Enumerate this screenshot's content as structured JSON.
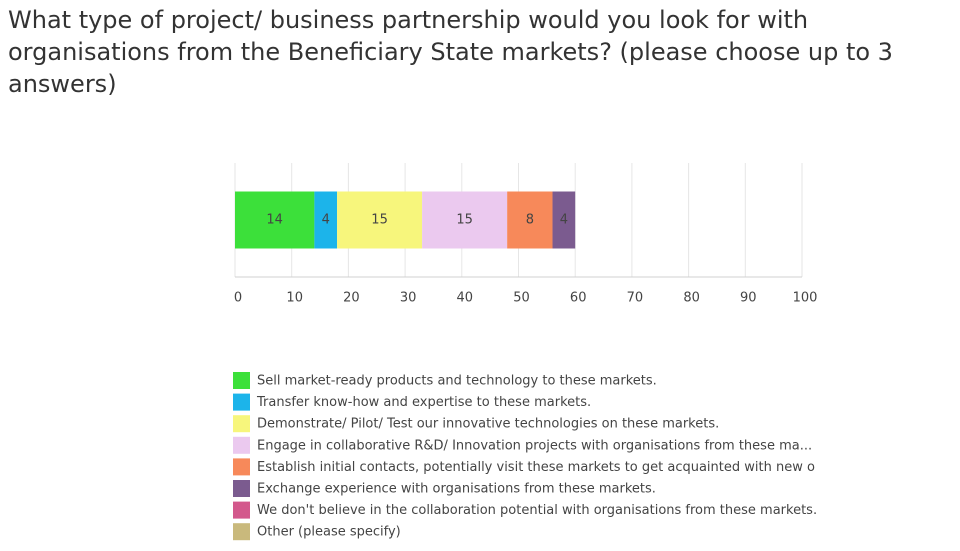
{
  "chart_data": {
    "type": "bar",
    "orientation": "horizontal",
    "stacked": true,
    "title": "What type of project/ business partnership would you look for with organisations from the Beneficiary State markets? (please choose up to 3 answers)",
    "categories": [
      null
    ],
    "series": [
      {
        "name": "Sell market-ready products and technology to these markets.",
        "color": "#3ce03a",
        "values": [
          14
        ]
      },
      {
        "name": "Transfer know-how and expertise to these markets.",
        "color": "#1cb4ea",
        "values": [
          4
        ]
      },
      {
        "name": "Demonstrate/ Pilot/ Test our innovative technologies on these markets.",
        "color": "#f7f67c",
        "values": [
          15
        ]
      },
      {
        "name": "Engage in collaborative R&D/ Innovation projects with organisations from these ma...",
        "color": "#ebc9ef",
        "values": [
          15
        ]
      },
      {
        "name": "Establish initial contacts, potentially visit these markets to get acquainted with new o",
        "color": "#f7895a",
        "values": [
          8
        ]
      },
      {
        "name": "Exchange experience with organisations from these markets.",
        "color": "#7b5b8f",
        "values": [
          4
        ]
      },
      {
        "name": "We don't believe in the collaboration potential with organisations from these markets.",
        "color": "#d3588c",
        "values": [
          0
        ]
      },
      {
        "name": "Other (please specify)",
        "color": "#c9b97c",
        "values": [
          0
        ]
      }
    ],
    "xlim": [
      0,
      100
    ],
    "xticks": [
      0,
      10,
      20,
      30,
      40,
      50,
      60,
      70,
      80,
      90,
      100
    ],
    "grid": true,
    "legend": "bottom"
  }
}
